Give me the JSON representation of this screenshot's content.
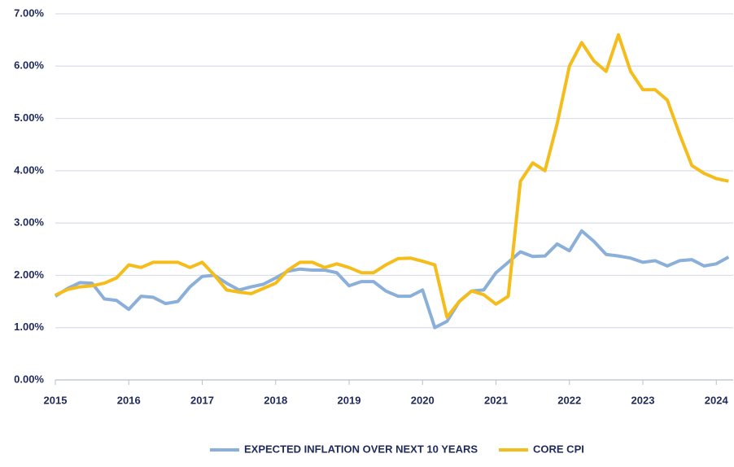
{
  "chart_data": {
    "type": "line",
    "x": [
      2015,
      2015.167,
      2015.333,
      2015.5,
      2015.667,
      2015.833,
      2016,
      2016.167,
      2016.333,
      2016.5,
      2016.667,
      2016.833,
      2017,
      2017.167,
      2017.333,
      2017.5,
      2017.667,
      2017.833,
      2018,
      2018.167,
      2018.333,
      2018.5,
      2018.667,
      2018.833,
      2019,
      2019.167,
      2019.333,
      2019.5,
      2019.667,
      2019.833,
      2020,
      2020.167,
      2020.333,
      2020.5,
      2020.667,
      2020.833,
      2021,
      2021.167,
      2021.333,
      2021.5,
      2021.667,
      2021.833,
      2022,
      2022.167,
      2022.333,
      2022.5,
      2022.667,
      2022.833,
      2023,
      2023.167,
      2023.333,
      2023.5,
      2023.667,
      2023.833,
      2024,
      2024.167
    ],
    "series": [
      {
        "name": "EXPECTED INFLATION OVER NEXT 10 YEARS",
        "color": "#8aafd9",
        "values": [
          1.6,
          1.75,
          1.86,
          1.85,
          1.55,
          1.52,
          1.35,
          1.6,
          1.58,
          1.46,
          1.5,
          1.78,
          1.98,
          2.0,
          1.85,
          1.72,
          1.78,
          1.83,
          1.95,
          2.08,
          2.12,
          2.1,
          2.1,
          2.05,
          1.8,
          1.88,
          1.88,
          1.7,
          1.6,
          1.6,
          1.72,
          1.0,
          1.12,
          1.5,
          1.7,
          1.72,
          2.05,
          2.25,
          2.45,
          2.36,
          2.37,
          2.6,
          2.47,
          2.85,
          2.65,
          2.4,
          2.37,
          2.33,
          2.25,
          2.28,
          2.18,
          2.28,
          2.3,
          2.18,
          2.22,
          2.35
        ]
      },
      {
        "name": "CORE CPI",
        "color": "#f4bd1b",
        "values": [
          1.62,
          1.73,
          1.78,
          1.8,
          1.85,
          1.95,
          2.2,
          2.15,
          2.25,
          2.25,
          2.25,
          2.15,
          2.25,
          2.0,
          1.72,
          1.68,
          1.65,
          1.75,
          1.85,
          2.1,
          2.25,
          2.25,
          2.15,
          2.22,
          2.15,
          2.05,
          2.05,
          2.2,
          2.32,
          2.33,
          2.27,
          2.2,
          1.2,
          1.5,
          1.7,
          1.63,
          1.45,
          1.6,
          3.8,
          4.15,
          4.0,
          4.9,
          6.0,
          6.45,
          6.1,
          5.9,
          6.6,
          5.9,
          5.55,
          5.55,
          5.35,
          4.7,
          4.1,
          3.95,
          3.85,
          3.8
        ]
      }
    ],
    "xlim": [
      2015,
      2024.23
    ],
    "xticks": [
      2015,
      2016,
      2017,
      2018,
      2019,
      2020,
      2021,
      2022,
      2023,
      2024
    ],
    "ylim": [
      0,
      7
    ],
    "yticks": [
      {
        "value": 0,
        "label": "0.00%"
      },
      {
        "value": 1,
        "label": "1.00%"
      },
      {
        "value": 2,
        "label": "2.00%"
      },
      {
        "value": 3,
        "label": "3.00%"
      },
      {
        "value": 4,
        "label": "4.00%"
      },
      {
        "value": 5,
        "label": "5.00%"
      },
      {
        "value": 6,
        "label": "6.00%"
      },
      {
        "value": 7,
        "label": "7.00%"
      }
    ],
    "grid": true,
    "legend": "bottom"
  }
}
